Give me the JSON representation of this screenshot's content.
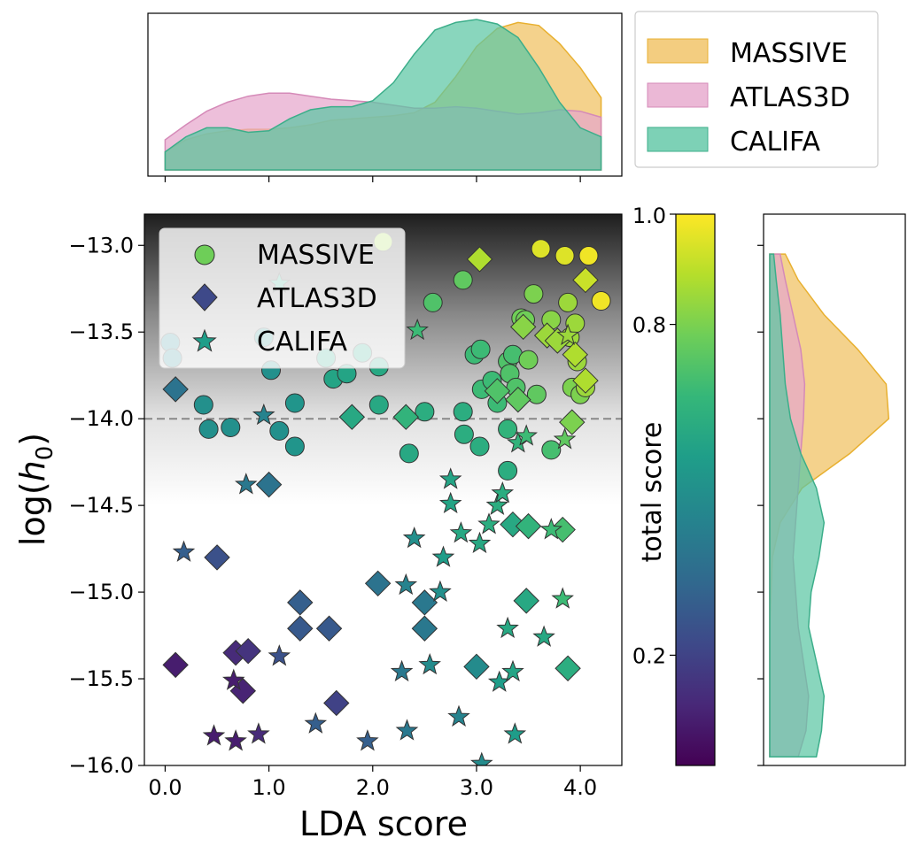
{
  "chart_data": {
    "type": "scatter",
    "main": {
      "xlabel": "LDA score",
      "ylabel_base": "log(",
      "ylabel_var": "h",
      "ylabel_sub": "0",
      "ylabel_close": ")",
      "xlim": [
        -0.2,
        4.4
      ],
      "ylim": [
        -16.0,
        -12.82
      ],
      "xticks": [
        0.0,
        1.0,
        2.0,
        3.0,
        4.0
      ],
      "xtick_labels": [
        "0.0",
        "1.0",
        "2.0",
        "3.0",
        "4.0"
      ],
      "yticks": [
        -13.0,
        -13.5,
        -14.0,
        -14.5,
        -15.0,
        -15.5,
        -16.0
      ],
      "ytick_labels": [
        "−13.0",
        "−13.5",
        "−14.0",
        "−14.5",
        "−15.0",
        "−15.5",
        "−16.0"
      ],
      "threshold": -14.0,
      "shade_range": [
        -14.5,
        -12.82
      ],
      "legend_position": "top-left",
      "series": [
        {
          "name": "MASSIVE",
          "marker": "circle",
          "points": [
            [
              0.05,
              -13.56,
              0.45
            ],
            [
              0.07,
              -13.65,
              0.45
            ],
            [
              0.37,
              -13.92,
              0.5
            ],
            [
              0.42,
              -14.06,
              0.5
            ],
            [
              0.63,
              -14.05,
              0.5
            ],
            [
              0.95,
              -13.53,
              0.5
            ],
            [
              1.02,
              -13.72,
              0.5
            ],
            [
              1.1,
              -14.07,
              0.5
            ],
            [
              1.25,
              -13.91,
              0.52
            ],
            [
              1.25,
              -14.16,
              0.52
            ],
            [
              1.55,
              -13.65,
              0.58
            ],
            [
              1.62,
              -13.77,
              0.58
            ],
            [
              1.75,
              -13.74,
              0.58
            ],
            [
              1.9,
              -13.62,
              0.58
            ],
            [
              2.06,
              -13.7,
              0.6
            ],
            [
              2.06,
              -13.92,
              0.6
            ],
            [
              2.1,
              -12.98,
              0.85
            ],
            [
              2.35,
              -14.2,
              0.6
            ],
            [
              2.5,
              -13.96,
              0.62
            ],
            [
              2.58,
              -13.33,
              0.72
            ],
            [
              2.87,
              -13.2,
              0.75
            ],
            [
              2.87,
              -13.96,
              0.62
            ],
            [
              2.88,
              -14.09,
              0.62
            ],
            [
              2.98,
              -13.63,
              0.68
            ],
            [
              3.04,
              -13.6,
              0.68
            ],
            [
              3.03,
              -14.16,
              0.62
            ],
            [
              3.05,
              -13.83,
              0.68
            ],
            [
              3.15,
              -13.78,
              0.68
            ],
            [
              3.2,
              -13.91,
              0.68
            ],
            [
              3.3,
              -13.67,
              0.72
            ],
            [
              3.32,
              -13.74,
              0.72
            ],
            [
              3.35,
              -13.63,
              0.7
            ],
            [
              3.3,
              -14.06,
              0.65
            ],
            [
              3.3,
              -14.3,
              0.62
            ],
            [
              3.38,
              -13.82,
              0.72
            ],
            [
              3.43,
              -13.42,
              0.78
            ],
            [
              3.47,
              -13.43,
              0.78
            ],
            [
              3.5,
              -13.66,
              0.78
            ],
            [
              3.55,
              -13.28,
              0.8
            ],
            [
              3.58,
              -13.86,
              0.75
            ],
            [
              3.62,
              -13.02,
              0.95
            ],
            [
              3.72,
              -13.43,
              0.82
            ],
            [
              3.72,
              -14.18,
              0.7
            ],
            [
              3.85,
              -13.06,
              0.95
            ],
            [
              3.88,
              -13.33,
              0.85
            ],
            [
              3.9,
              -13.53,
              0.85
            ],
            [
              3.92,
              -13.82,
              0.8
            ],
            [
              3.95,
              -13.45,
              0.85
            ],
            [
              3.97,
              -13.67,
              0.85
            ],
            [
              4.0,
              -13.86,
              0.8
            ],
            [
              4.05,
              -13.82,
              0.85
            ],
            [
              4.08,
              -13.06,
              0.98
            ],
            [
              4.2,
              -13.32,
              0.98
            ]
          ]
        },
        {
          "name": "ATLAS3D",
          "marker": "diamond",
          "points": [
            [
              0.1,
              -13.83,
              0.38
            ],
            [
              0.1,
              -15.42,
              0.08
            ],
            [
              0.5,
              -14.8,
              0.25
            ],
            [
              0.68,
              -15.35,
              0.12
            ],
            [
              0.75,
              -15.57,
              0.1
            ],
            [
              0.8,
              -15.34,
              0.15
            ],
            [
              1.0,
              -14.38,
              0.38
            ],
            [
              1.3,
              -15.06,
              0.3
            ],
            [
              1.3,
              -15.21,
              0.28
            ],
            [
              1.58,
              -15.21,
              0.28
            ],
            [
              1.65,
              -15.64,
              0.2
            ],
            [
              1.8,
              -13.99,
              0.6
            ],
            [
              2.05,
              -14.95,
              0.38
            ],
            [
              2.32,
              -13.99,
              0.65
            ],
            [
              2.5,
              -15.06,
              0.4
            ],
            [
              2.5,
              -15.21,
              0.4
            ],
            [
              3.0,
              -15.43,
              0.48
            ],
            [
              3.03,
              -13.08,
              0.88
            ],
            [
              3.2,
              -13.84,
              0.72
            ],
            [
              3.35,
              -14.61,
              0.6
            ],
            [
              3.4,
              -13.89,
              0.75
            ],
            [
              3.45,
              -13.47,
              0.82
            ],
            [
              3.48,
              -15.05,
              0.6
            ],
            [
              3.5,
              -14.62,
              0.65
            ],
            [
              3.68,
              -13.52,
              0.85
            ],
            [
              3.78,
              -13.55,
              0.85
            ],
            [
              3.83,
              -14.64,
              0.7
            ],
            [
              3.88,
              -15.44,
              0.62
            ],
            [
              3.92,
              -14.02,
              0.8
            ],
            [
              3.95,
              -13.63,
              0.88
            ],
            [
              4.05,
              -13.2,
              0.92
            ],
            [
              4.05,
              -13.78,
              0.88
            ]
          ]
        },
        {
          "name": "CALIFA",
          "marker": "star",
          "points": [
            [
              0.18,
              -14.77,
              0.3
            ],
            [
              0.47,
              -15.83,
              0.08
            ],
            [
              0.66,
              -15.51,
              0.08
            ],
            [
              0.68,
              -15.86,
              0.08
            ],
            [
              0.78,
              -14.38,
              0.4
            ],
            [
              0.9,
              -15.82,
              0.12
            ],
            [
              0.95,
              -13.98,
              0.45
            ],
            [
              1.1,
              -15.37,
              0.25
            ],
            [
              1.1,
              -13.22,
              0.6
            ],
            [
              1.45,
              -15.76,
              0.3
            ],
            [
              1.95,
              -15.86,
              0.3
            ],
            [
              2.28,
              -15.46,
              0.4
            ],
            [
              2.32,
              -14.96,
              0.45
            ],
            [
              2.33,
              -15.8,
              0.4
            ],
            [
              2.4,
              -14.69,
              0.5
            ],
            [
              2.43,
              -13.49,
              0.68
            ],
            [
              2.55,
              -15.42,
              0.48
            ],
            [
              2.65,
              -15.0,
              0.5
            ],
            [
              2.68,
              -14.8,
              0.55
            ],
            [
              2.75,
              -14.35,
              0.58
            ],
            [
              2.75,
              -14.49,
              0.58
            ],
            [
              2.83,
              -15.72,
              0.45
            ],
            [
              2.85,
              -14.66,
              0.6
            ],
            [
              3.03,
              -14.72,
              0.6
            ],
            [
              3.05,
              -15.99,
              0.48
            ],
            [
              3.12,
              -14.61,
              0.62
            ],
            [
              3.2,
              -14.5,
              0.62
            ],
            [
              3.22,
              -15.52,
              0.55
            ],
            [
              3.25,
              -14.43,
              0.62
            ],
            [
              3.3,
              -15.21,
              0.6
            ],
            [
              3.35,
              -15.46,
              0.58
            ],
            [
              3.37,
              -15.82,
              0.55
            ],
            [
              3.4,
              -14.14,
              0.65
            ],
            [
              3.48,
              -14.1,
              0.68
            ],
            [
              3.65,
              -15.26,
              0.6
            ],
            [
              3.72,
              -14.64,
              0.68
            ],
            [
              3.83,
              -15.04,
              0.68
            ],
            [
              3.85,
              -14.12,
              0.75
            ],
            [
              3.88,
              -13.52,
              0.85
            ]
          ]
        }
      ]
    },
    "top_kde": {
      "x": [
        0.0,
        0.2,
        0.4,
        0.6,
        0.8,
        1.0,
        1.2,
        1.4,
        1.6,
        1.8,
        2.0,
        2.2,
        2.4,
        2.6,
        2.8,
        3.0,
        3.2,
        3.4,
        3.6,
        3.8,
        4.0,
        4.2
      ],
      "series": [
        {
          "name": "MASSIVE",
          "values": [
            0.12,
            0.2,
            0.24,
            0.26,
            0.27,
            0.27,
            0.28,
            0.3,
            0.33,
            0.34,
            0.35,
            0.36,
            0.38,
            0.45,
            0.62,
            0.82,
            0.94,
            0.98,
            0.96,
            0.84,
            0.68,
            0.48
          ]
        },
        {
          "name": "ATLAS3D",
          "values": [
            0.2,
            0.3,
            0.39,
            0.45,
            0.49,
            0.51,
            0.51,
            0.49,
            0.47,
            0.46,
            0.45,
            0.43,
            0.41,
            0.41,
            0.42,
            0.41,
            0.39,
            0.37,
            0.38,
            0.4,
            0.39,
            0.35
          ]
        },
        {
          "name": "CALIFA",
          "values": [
            0.12,
            0.22,
            0.28,
            0.28,
            0.25,
            0.26,
            0.34,
            0.4,
            0.42,
            0.42,
            0.46,
            0.58,
            0.77,
            0.93,
            0.98,
            1.0,
            0.97,
            0.88,
            0.68,
            0.45,
            0.28,
            0.22
          ]
        }
      ]
    },
    "right_kde": {
      "y": [
        -13.05,
        -13.2,
        -13.4,
        -13.6,
        -13.8,
        -14.0,
        -14.2,
        -14.4,
        -14.6,
        -14.8,
        -15.0,
        -15.2,
        -15.4,
        -15.6,
        -15.8,
        -15.95
      ],
      "series": [
        {
          "name": "MASSIVE",
          "values": [
            0.12,
            0.22,
            0.42,
            0.68,
            0.9,
            0.92,
            0.62,
            0.25,
            0.08,
            0.02,
            0.01,
            0.0,
            0.0,
            0.0,
            0.0,
            0.0
          ]
        },
        {
          "name": "ATLAS3D",
          "values": [
            0.08,
            0.12,
            0.18,
            0.24,
            0.27,
            0.26,
            0.24,
            0.22,
            0.2,
            0.18,
            0.2,
            0.22,
            0.26,
            0.3,
            0.28,
            0.22
          ]
        },
        {
          "name": "CALIFA",
          "values": [
            0.03,
            0.05,
            0.08,
            0.1,
            0.12,
            0.16,
            0.24,
            0.36,
            0.42,
            0.38,
            0.32,
            0.3,
            0.36,
            0.42,
            0.4,
            0.36
          ]
        }
      ]
    },
    "colorbar": {
      "label": "total score",
      "ticks": [
        1.0,
        0.8,
        0.2
      ],
      "tick_labels": [
        "1.0",
        "0.8",
        "0.2"
      ],
      "range": [
        0.0,
        1.0
      ],
      "colormap": "viridis"
    }
  },
  "legends": {
    "top": [
      "MASSIVE",
      "ATLAS3D",
      "CALIFA"
    ],
    "main": [
      "MASSIVE",
      "ATLAS3D",
      "CALIFA"
    ]
  },
  "colors": {
    "MASSIVE_fill": "#f0c060",
    "MASSIVE_edge": "#e8b030",
    "ATLAS3D_fill": "#e6a6cc",
    "ATLAS3D_edge": "#d58ab8",
    "CALIFA_fill": "#5cc6a4",
    "CALIFA_edge": "#3cae8a",
    "viridis": [
      "#440154",
      "#482878",
      "#3e4989",
      "#31688e",
      "#26828e",
      "#1f9e89",
      "#35b779",
      "#6ece58",
      "#b5de2b",
      "#fde725"
    ]
  }
}
